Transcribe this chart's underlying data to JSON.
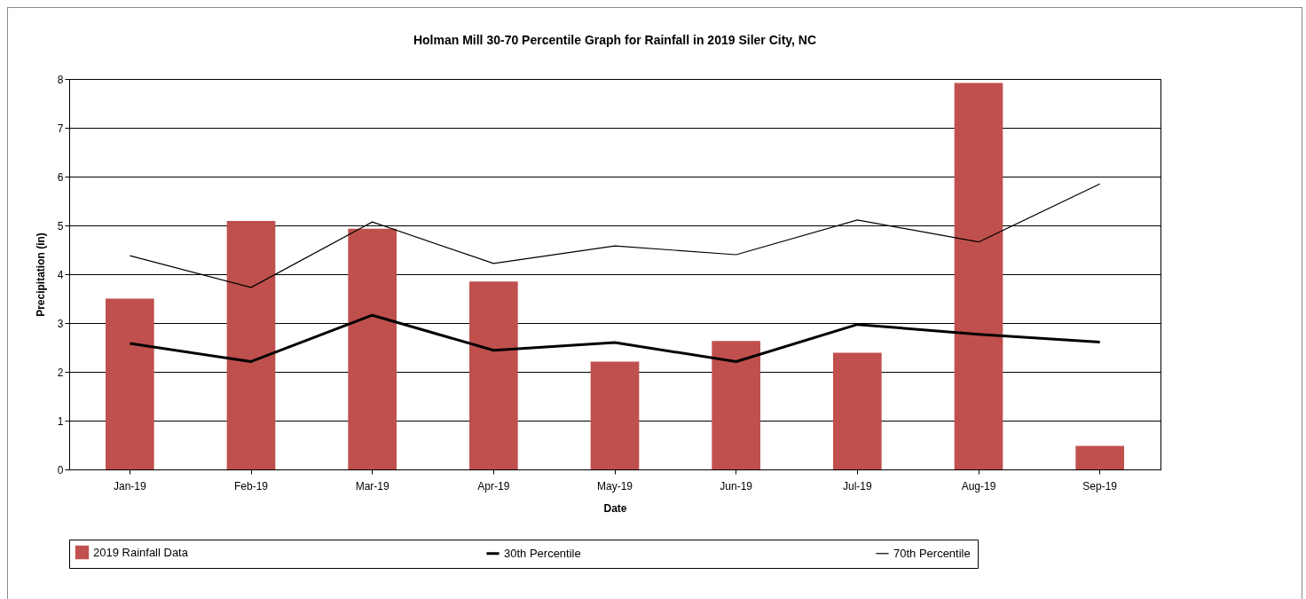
{
  "chart_data": {
    "type": "bar",
    "title": "Holman Mill 30-70 Percentile Graph for Rainfall in 2019 Siler City, NC",
    "xlabel": "Date",
    "ylabel": "Precipitation (in)",
    "categories": [
      "Jan-19",
      "Feb-19",
      "Mar-19",
      "Apr-19",
      "May-19",
      "Jun-19",
      "Jul-19",
      "Aug-19",
      "Sep-19"
    ],
    "series": [
      {
        "name": "2019 Rainfall Data",
        "color": "#c0504d",
        "values": [
          3.5,
          5.09,
          4.93,
          3.85,
          2.21,
          2.63,
          2.39,
          7.92,
          0.48
        ]
      },
      {
        "name": "30th Percentile",
        "type": "line",
        "color": "#000000",
        "values": [
          2.58,
          2.21,
          3.16,
          2.44,
          2.6,
          2.21,
          2.97,
          2.77,
          2.61
        ]
      },
      {
        "name": "70th Percentile",
        "type": "line",
        "color": "#000000",
        "values": [
          4.38,
          3.73,
          5.07,
          4.22,
          4.58,
          4.4,
          5.11,
          4.66,
          5.85
        ]
      }
    ],
    "ylim": [
      0,
      8
    ],
    "yticks": [
      0,
      1,
      2,
      3,
      4,
      5,
      6,
      7,
      8
    ],
    "grid": "y",
    "legend": "bottom",
    "marker": "none",
    "line_style": "solid"
  }
}
